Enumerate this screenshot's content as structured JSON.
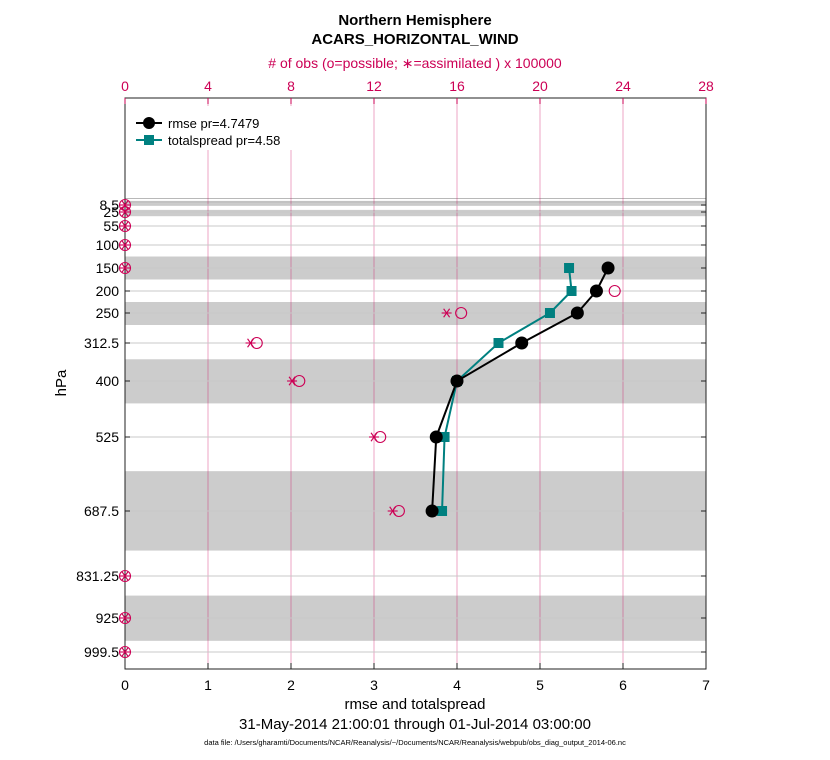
{
  "chart_data": {
    "type": "line",
    "title": "Northern Hemisphere",
    "subtitle": "ACARS_HORIZONTAL_WIND",
    "top_axis_label": "# of obs (o=possible; ∗=assimilated ) x 100000",
    "xlabel": "rmse and totalspread",
    "ylabel": "hPa",
    "time_range": "31-May-2014 21:00:01 through 01-Jul-2014 03:00:00",
    "footnote": "data file: /Users/gharamti/Documents/NCAR/Reanalysis/~/Documents/NCAR/Reanalysis/webpub/obs_diag_output_2014-06.nc",
    "xlim": [
      0,
      7
    ],
    "x_ticks": [
      "0",
      "1",
      "2",
      "3",
      "4",
      "5",
      "6",
      "7"
    ],
    "top_xlim": [
      0,
      28
    ],
    "top_ticks": [
      "0",
      "4",
      "8",
      "12",
      "16",
      "20",
      "24",
      "28"
    ],
    "levels": [
      8.5,
      25,
      55,
      100,
      150,
      200,
      250,
      312.5,
      400,
      525,
      687.5,
      831.25,
      925,
      999.5
    ],
    "level_labels": [
      "8.5",
      "25",
      "55",
      "100",
      "150",
      "200",
      "250",
      "312.5",
      "400",
      "525",
      "687.5",
      "831.25",
      "925",
      "999.5"
    ],
    "series": [
      {
        "name": "rmse",
        "legend": "rmse pr=4.7479",
        "color": "#000000",
        "marker": "circle",
        "points": [
          [
            5.82,
            150
          ],
          [
            5.68,
            200
          ],
          [
            5.45,
            250
          ],
          [
            4.78,
            312.5
          ],
          [
            4.0,
            400
          ],
          [
            3.75,
            525
          ],
          [
            3.7,
            687.5
          ]
        ]
      },
      {
        "name": "totalspread",
        "legend": "totalspread pr=4.58",
        "color": "#008080",
        "marker": "square",
        "points": [
          [
            5.35,
            150
          ],
          [
            5.38,
            200
          ],
          [
            5.12,
            250
          ],
          [
            4.5,
            312.5
          ],
          [
            4.0,
            400
          ],
          [
            3.85,
            525
          ],
          [
            3.82,
            687.5
          ]
        ]
      }
    ],
    "obs_possible": {
      "color": "#cc0055",
      "points": [
        [
          0,
          8.5
        ],
        [
          0,
          25
        ],
        [
          0,
          55
        ],
        [
          0,
          100
        ],
        [
          0,
          150
        ],
        [
          23.6,
          200
        ],
        [
          16.2,
          250
        ],
        [
          6.35,
          312.5
        ],
        [
          8.4,
          400
        ],
        [
          12.3,
          525
        ],
        [
          13.2,
          687.5
        ],
        [
          0,
          831.25
        ],
        [
          0,
          925
        ],
        [
          0,
          999.5
        ]
      ]
    },
    "obs_assimilated": {
      "color": "#cc0055",
      "points": [
        [
          0,
          8.5
        ],
        [
          0,
          25
        ],
        [
          0,
          55
        ],
        [
          0,
          100
        ],
        [
          0,
          150
        ],
        [
          22.8,
          200
        ],
        [
          15.5,
          250
        ],
        [
          6.05,
          312.5
        ],
        [
          8.05,
          400
        ],
        [
          12.0,
          525
        ],
        [
          12.9,
          687.5
        ],
        [
          0,
          831.25
        ],
        [
          0,
          925
        ],
        [
          0,
          999.5
        ]
      ]
    },
    "gray_bands": [
      [
        5,
        8.5
      ],
      [
        20,
        34
      ],
      [
        125,
        175
      ],
      [
        225,
        275
      ],
      [
        350,
        450
      ],
      [
        600,
        775
      ],
      [
        875,
        975
      ]
    ]
  }
}
